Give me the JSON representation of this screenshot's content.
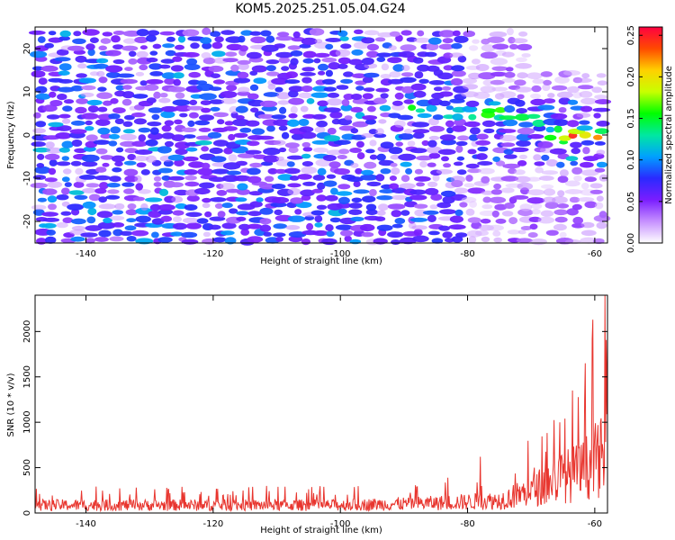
{
  "title": "KOM5.2025.251.05.04.G24",
  "chart_data": [
    {
      "type": "heatmap",
      "xlabel": "Height of straight line (km)",
      "ylabel": "Frequency (Hz)",
      "xlim": [
        -148,
        -58
      ],
      "ylim": [
        -25,
        25
      ],
      "xticks": [
        -140,
        -120,
        -100,
        -80,
        -60
      ],
      "yticks": [
        -20,
        -10,
        0,
        10,
        20
      ],
      "colorbar": {
        "label": "Normalized spectral amplitude",
        "range": [
          0,
          0.26
        ],
        "ticks": [
          "0.00",
          "0.05",
          "0.10",
          "0.15",
          "0.20",
          "0.25"
        ],
        "colormap": [
          "#ffffff",
          "#c690ff",
          "#7a1dff",
          "#2a2aff",
          "#00a0ff",
          "#00e8a0",
          "#00ff00",
          "#c8ff00",
          "#ffd000",
          "#ff4a00",
          "#ff0040"
        ]
      },
      "features": [
        {
          "x": -76,
          "y": 6,
          "value": 0.17
        },
        {
          "x": -70,
          "y": 4,
          "value": 0.16
        },
        {
          "x": -64,
          "y": 0,
          "value": 0.26
        },
        {
          "x": -59,
          "y": 0,
          "value": 0.22
        },
        {
          "x": -128,
          "y": -3,
          "value": 0.11
        },
        {
          "x": -134,
          "y": 4,
          "value": 0.08
        },
        {
          "x": -118,
          "y": 0,
          "value": 0.07
        }
      ]
    },
    {
      "type": "line",
      "xlabel": "Height of straight line (km)",
      "ylabel": "SNR (10 * v/v)",
      "xlim": [
        -148,
        -58
      ],
      "ylim": [
        0,
        2400
      ],
      "xticks": [
        -140,
        -120,
        -100,
        -80,
        -60
      ],
      "yticks": [
        0,
        500,
        1000,
        1500,
        2000
      ],
      "series_color": "#e8352e",
      "envelope": [
        {
          "x": -148,
          "value": 150
        },
        {
          "x": -100,
          "value": 150
        },
        {
          "x": -85,
          "value": 190
        },
        {
          "x": -75,
          "value": 240
        },
        {
          "x": -70,
          "value": 420
        },
        {
          "x": -66,
          "value": 650
        },
        {
          "x": -62,
          "value": 800
        },
        {
          "x": -60,
          "value": 1000
        },
        {
          "x": -58,
          "value": 1100
        }
      ],
      "peaks": [
        {
          "x": -60.3,
          "value": 2130
        },
        {
          "x": -58.4,
          "value": 2400
        },
        {
          "x": -61.5,
          "value": 1650
        },
        {
          "x": -63.5,
          "value": 1350
        },
        {
          "x": -65.5,
          "value": 1000
        },
        {
          "x": -69.5,
          "value": 500
        },
        {
          "x": -78,
          "value": 620
        }
      ]
    }
  ]
}
